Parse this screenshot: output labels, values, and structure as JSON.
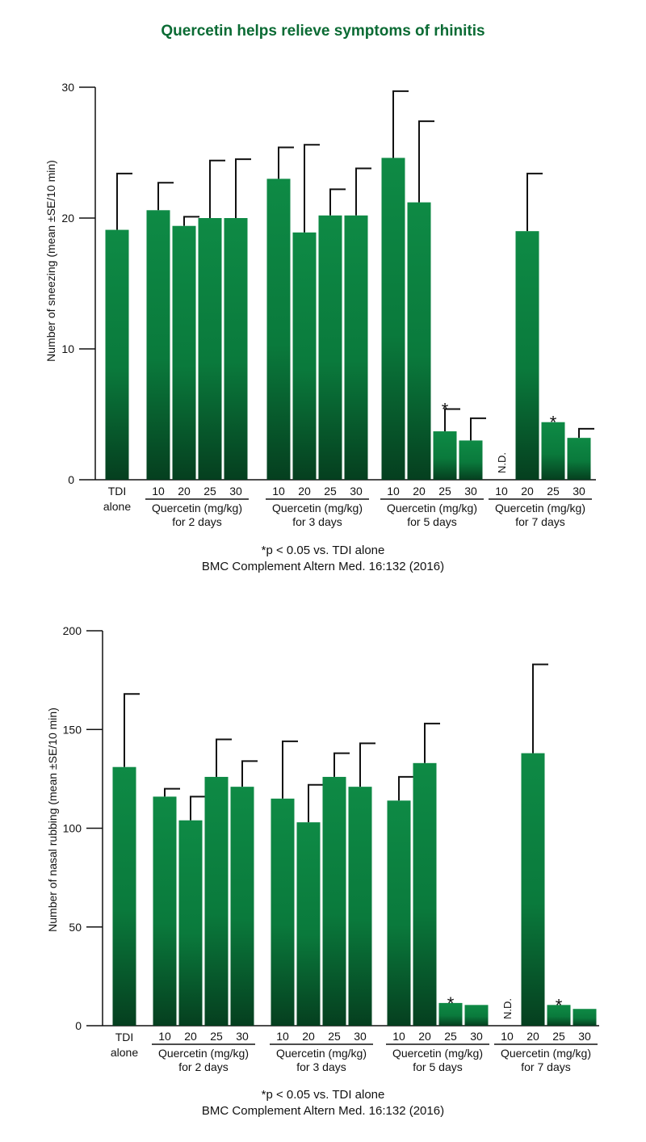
{
  "title": "Quercetin helps relieve symptoms of rhinitis",
  "colors": {
    "title": "#0b6b34",
    "bar_top": "#0e8a45",
    "bar_bottom": "#053f1f",
    "axis": "#111111"
  },
  "chart_data": [
    {
      "type": "bar",
      "title": "",
      "ylabel": "Number of sneezing (mean ±SE/10 min)",
      "ylim": [
        0,
        30
      ],
      "yticks": [
        0,
        10,
        20,
        30
      ],
      "control": {
        "label_line1": "TDI",
        "label_line2": "alone",
        "value": 19.1,
        "error": 23.4
      },
      "groups": [
        {
          "label": "Quercetin (mg/kg)",
          "sublabel": "for 2 days",
          "doses": [
            "10",
            "20",
            "25",
            "30"
          ],
          "values": [
            20.6,
            19.4,
            20.0,
            20.0
          ],
          "errors": [
            22.7,
            20.1,
            24.4,
            24.5
          ],
          "annotations": [
            "",
            "",
            "",
            ""
          ]
        },
        {
          "label": "Quercetin (mg/kg)",
          "sublabel": "for 3 days",
          "doses": [
            "10",
            "20",
            "25",
            "30"
          ],
          "values": [
            23.0,
            18.9,
            20.2,
            20.2
          ],
          "errors": [
            25.4,
            25.6,
            22.2,
            23.8
          ],
          "annotations": [
            "",
            "",
            "",
            ""
          ]
        },
        {
          "label": "Quercetin (mg/kg)",
          "sublabel": "for 5 days",
          "doses": [
            "10",
            "20",
            "25",
            "30"
          ],
          "values": [
            24.6,
            21.2,
            3.7,
            3.0
          ],
          "errors": [
            29.7,
            27.4,
            5.4,
            4.7
          ],
          "annotations": [
            "",
            "",
            "*",
            ""
          ]
        },
        {
          "label": "Quercetin (mg/kg)",
          "sublabel": "for 7 days",
          "doses": [
            "10",
            "20",
            "25",
            "30"
          ],
          "values": [
            null,
            19.0,
            4.4,
            3.2
          ],
          "errors": [
            null,
            23.4,
            null,
            3.9
          ],
          "annotations": [
            "N.D.",
            "",
            "*",
            ""
          ]
        }
      ],
      "footnote": "*p < 0.05 vs. TDI alone",
      "source": "BMC Complement Altern Med. 16:132 (2016)"
    },
    {
      "type": "bar",
      "title": "",
      "ylabel": "Number of nasal rubbing (mean ±SE/10 min)",
      "ylim": [
        0,
        200
      ],
      "yticks": [
        0,
        50,
        100,
        150,
        200
      ],
      "control": {
        "label_line1": "TDI",
        "label_line2": "alone",
        "value": 131,
        "error": 168
      },
      "groups": [
        {
          "label": "Quercetin (mg/kg)",
          "sublabel": "for 2 days",
          "doses": [
            "10",
            "20",
            "25",
            "30"
          ],
          "values": [
            116,
            104,
            126,
            121
          ],
          "errors": [
            120,
            116,
            145,
            134
          ],
          "annotations": [
            "",
            "",
            "",
            ""
          ]
        },
        {
          "label": "Quercetin (mg/kg)",
          "sublabel": "for 3 days",
          "doses": [
            "10",
            "20",
            "25",
            "30"
          ],
          "values": [
            115,
            103,
            126,
            121
          ],
          "errors": [
            144,
            122,
            138,
            143
          ],
          "annotations": [
            "",
            "",
            "",
            ""
          ]
        },
        {
          "label": "Quercetin (mg/kg)",
          "sublabel": "for 5 days",
          "doses": [
            "10",
            "20",
            "25",
            "30"
          ],
          "values": [
            114,
            133,
            11.5,
            10.5
          ],
          "errors": [
            126,
            153,
            null,
            null
          ],
          "annotations": [
            "",
            "",
            "*",
            ""
          ]
        },
        {
          "label": "Quercetin (mg/kg)",
          "sublabel": "for 7 days",
          "doses": [
            "10",
            "20",
            "25",
            "30"
          ],
          "values": [
            null,
            138,
            10.5,
            8.5
          ],
          "errors": [
            null,
            183,
            null,
            null
          ],
          "annotations": [
            "N.D.",
            "",
            "*",
            ""
          ]
        }
      ],
      "footnote": "*p < 0.05 vs. TDI alone",
      "source": "BMC Complement Altern Med. 16:132 (2016)"
    }
  ]
}
